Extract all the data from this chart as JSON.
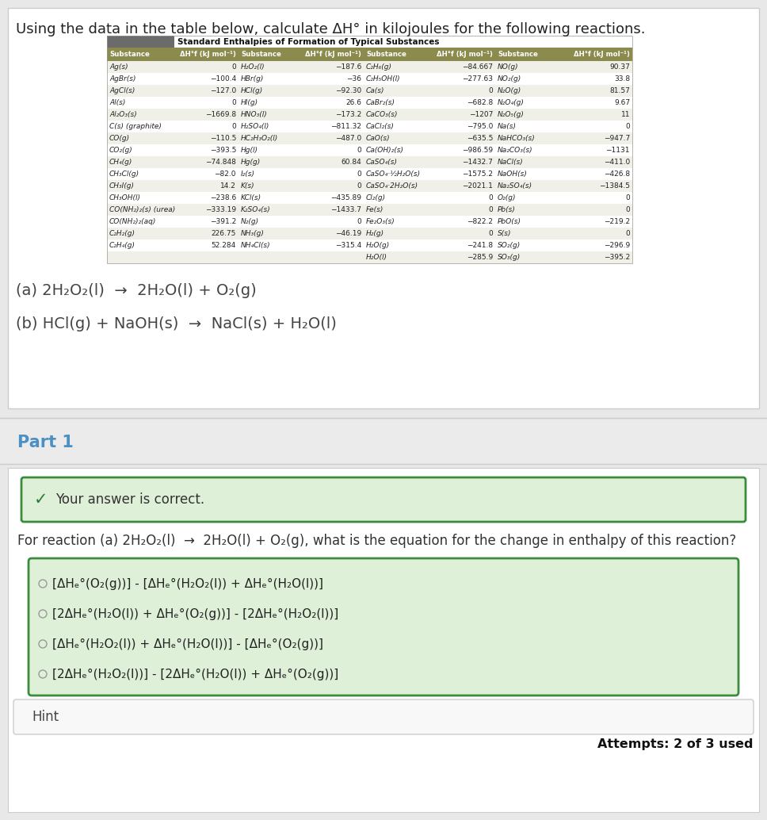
{
  "title": "Using the data in the table below, calculate ΔH° in kilojoules for the following reactions.",
  "table_title": "Standard Enthalpies of Formation of Typical Substances",
  "col_headers": [
    "Substance",
    "ΔH°f (kJ mol⁻¹)",
    "Substance",
    "ΔH°f (kJ mol⁻¹)",
    "Substance",
    "ΔH°f (kJ mol⁻¹)",
    "Substance",
    "ΔH°f (kJ mol⁻¹)"
  ],
  "rows": [
    [
      "Ag(s)",
      "0",
      "H₂O₂(l)",
      "−187.6",
      "C₂H₆(g)",
      "−84.667",
      "NO(g)",
      "90.37"
    ],
    [
      "AgBr(s)",
      "−100.4",
      "HBr(g)",
      "−36",
      "C₂H₅OH(l)",
      "−277.63",
      "NO₂(g)",
      "33.8"
    ],
    [
      "AgCl(s)",
      "−127.0",
      "HCl(g)",
      "−92.30",
      "Ca(s)",
      "0",
      "N₂O(g)",
      "81.57"
    ],
    [
      "Al(s)",
      "0",
      "HI(g)",
      "26.6",
      "CaBr₂(s)",
      "−682.8",
      "N₂O₄(g)",
      "9.67"
    ],
    [
      "Al₂O₃(s)",
      "−1669.8",
      "HNO₃(l)",
      "−173.2",
      "CaCO₃(s)",
      "−1207",
      "N₂O₅(g)",
      "11"
    ],
    [
      "C(s) (graphite)",
      "0",
      "H₂SO₄(l)",
      "−811.32",
      "CaCl₂(s)",
      "−795.0",
      "Na(s)",
      "0"
    ],
    [
      "CO(g)",
      "−110.5",
      "HC₂H₃O₂(l)",
      "−487.0",
      "CaO(s)",
      "−635.5",
      "NaHCO₃(s)",
      "−947.7"
    ],
    [
      "CO₂(g)",
      "−393.5",
      "Hg(l)",
      "0",
      "Ca(OH)₂(s)",
      "−986.59",
      "Na₂CO₃(s)",
      "−1131"
    ],
    [
      "CH₄(g)",
      "−74.848",
      "Hg(g)",
      "60.84",
      "CaSO₄(s)",
      "−1432.7",
      "NaCl(s)",
      "−411.0"
    ],
    [
      "CH₃Cl(g)",
      "−82.0",
      "I₂(s)",
      "0",
      "CaSO₄·½H₂O(s)",
      "−1575.2",
      "NaOH(s)",
      "−426.8"
    ],
    [
      "CH₃I(g)",
      "14.2",
      "K(s)",
      "0",
      "CaSO₄·2H₂O(s)",
      "−2021.1",
      "Na₂SO₄(s)",
      "−1384.5"
    ],
    [
      "CH₃OH(l)",
      "−238.6",
      "KCl(s)",
      "−435.89",
      "Cl₂(g)",
      "0",
      "O₂(g)",
      "0"
    ],
    [
      "CO(NH₂)₂(s) (urea)",
      "−333.19",
      "K₂SO₄(s)",
      "−1433.7",
      "Fe(s)",
      "0",
      "Pb(s)",
      "0"
    ],
    [
      "CO(NH₂)₂(aq)",
      "−391.2",
      "N₂(g)",
      "0",
      "Fe₂O₃(s)",
      "−822.2",
      "PbO(s)",
      "−219.2"
    ],
    [
      "C₂H₂(g)",
      "226.75",
      "NH₃(g)",
      "−46.19",
      "H₂(g)",
      "0",
      "S(s)",
      "0"
    ],
    [
      "C₂H₄(g)",
      "52.284",
      "NH₄Cl(s)",
      "−315.4",
      "H₂O(g)",
      "−241.8",
      "SO₂(g)",
      "−296.9"
    ],
    [
      "",
      "",
      "",
      "",
      "H₂O(l)",
      "−285.9",
      "SO₃(g)",
      "−395.2"
    ]
  ],
  "reaction_a": "(a) 2H₂O₂(l)  →  2H₂O(l) + O₂(g)",
  "reaction_b": "(b) HCl(g) + NaOH(s)  →  NaCl(s) + H₂O(l)",
  "part1_label": "Part 1",
  "correct_text": "Your answer is correct.",
  "question_text": "For reaction (a) 2H₂O₂(l)  →  2H₂O(l) + O₂(g), what is the equation for the change in enthalpy of this reaction?",
  "options": [
    "[ΔHₑ°(O₂(g))] - [ΔHₑ°(H₂O₂(l)) + ΔHₑ°(H₂O(l))]",
    "[2ΔHₑ°(H₂O(l)) + ΔHₑ°(O₂(g))] - [2ΔHₑ°(H₂O₂(l))]",
    "[ΔHₑ°(H₂O₂(l)) + ΔHₑ°(H₂O(l))] - [ΔHₑ°(O₂(g))]",
    "[2ΔHₑ°(H₂O₂(l))] - [2ΔHₑ°(H₂O(l)) + ΔHₑ°(O₂(g))]"
  ],
  "hint_text": "Hint",
  "attempts_text": "Attempts: 2 of 3 used",
  "bg_color": "#e8e8e8",
  "white": "#ffffff",
  "card_border": "#cccccc",
  "table_gray_bg": "#6b6b6b",
  "table_olive_bg": "#8b8b4e",
  "table_row_even": "#f0f0e8",
  "table_row_odd": "#ffffff",
  "part1_bg": "#e8e8e8",
  "part1_sep_color": "#cccccc",
  "correct_bg": "#dff0d8",
  "correct_border": "#3d8b3d",
  "options_bg": "#dff0d8",
  "options_border": "#3d8b3d",
  "hint_bg": "#f8f8f8",
  "hint_border": "#cccccc",
  "part1_color": "#4a90c4",
  "text_color": "#333333",
  "dark_text": "#222222",
  "radio_color": "#999999"
}
